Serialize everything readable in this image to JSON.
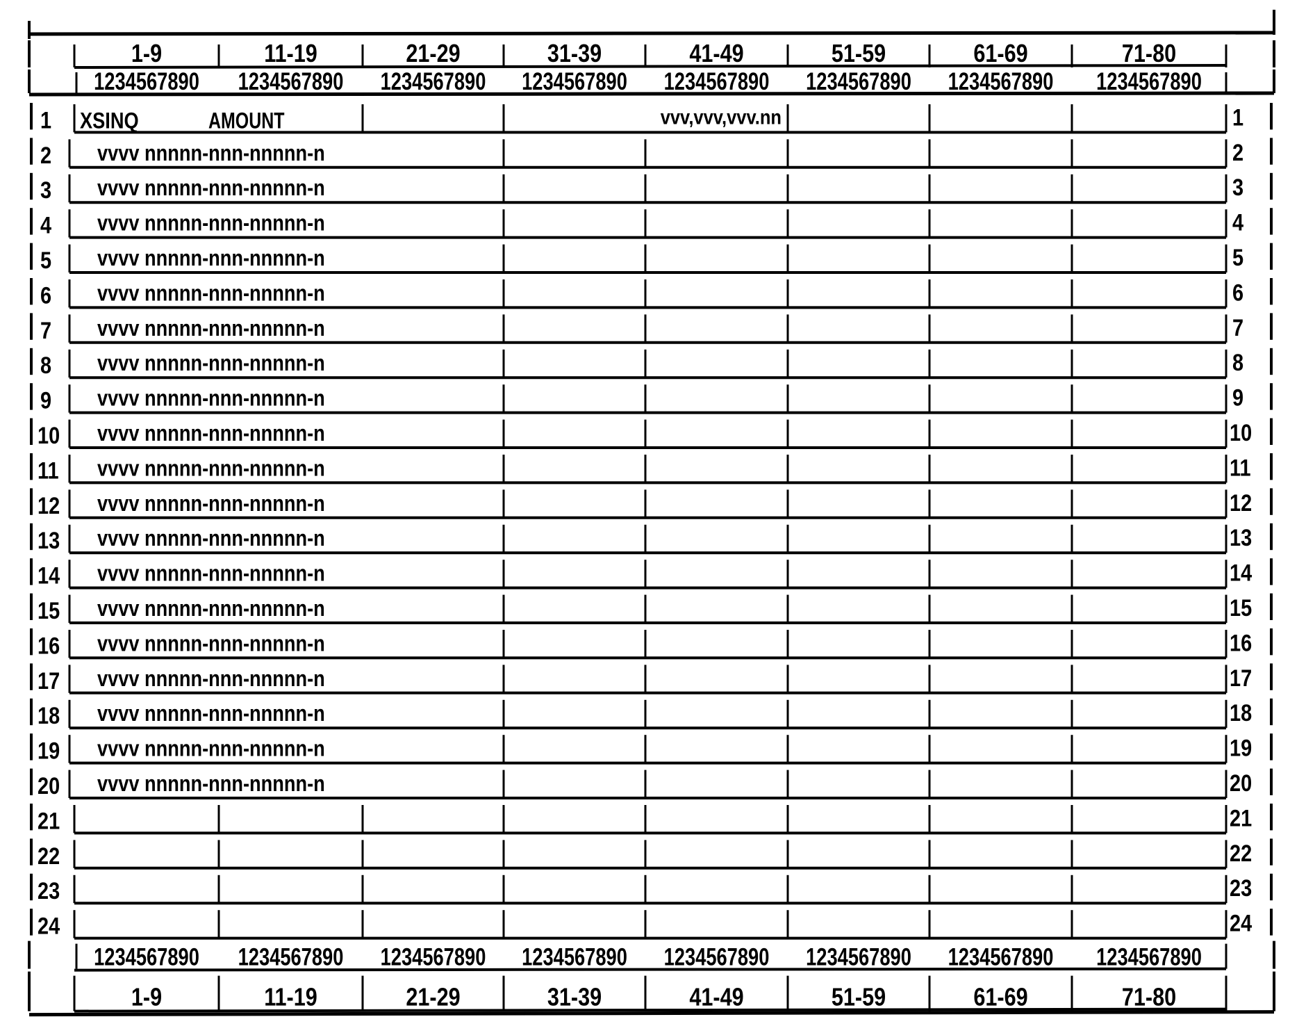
{
  "column_ranges": [
    "1-9",
    "11-19",
    "21-29",
    "31-39",
    "41-49",
    "51-59",
    "61-69",
    "71-80"
  ],
  "column_digits": "1234567890",
  "rows": [
    {
      "number": "1",
      "fields": [
        "XSINQ",
        "AMOUNT"
      ],
      "value": "vvv,vvv,vvv.nn"
    },
    {
      "number": "2",
      "text": "vvvv nnnnn-nnn-nnnnn-n"
    },
    {
      "number": "3",
      "text": "vvvv nnnnn-nnn-nnnnn-n"
    },
    {
      "number": "4",
      "text": "vvvv nnnnn-nnn-nnnnn-n"
    },
    {
      "number": "5",
      "text": "vvvv nnnnn-nnn-nnnnn-n"
    },
    {
      "number": "6",
      "text": "vvvv nnnnn-nnn-nnnnn-n"
    },
    {
      "number": "7",
      "text": "vvvv nnnnn-nnn-nnnnn-n"
    },
    {
      "number": "8",
      "text": "vvvv nnnnn-nnn-nnnnn-n"
    },
    {
      "number": "9",
      "text": "vvvv nnnnn-nnn-nnnnn-n"
    },
    {
      "number": "10",
      "text": "vvvv nnnnn-nnn-nnnnn-n"
    },
    {
      "number": "11",
      "text": "vvvv nnnnn-nnn-nnnnn-n"
    },
    {
      "number": "12",
      "text": "vvvv nnnnn-nnn-nnnnn-n"
    },
    {
      "number": "13",
      "text": "vvvv nnnnn-nnn-nnnnn-n"
    },
    {
      "number": "14",
      "text": "vvvv nnnnn-nnn-nnnnn-n"
    },
    {
      "number": "15",
      "text": "vvvv nnnnn-nnn-nnnnn-n"
    },
    {
      "number": "16",
      "text": "vvvv nnnnn-nnn-nnnnn-n"
    },
    {
      "number": "17",
      "text": "vvvv nnnnn-nnn-nnnnn-n"
    },
    {
      "number": "18",
      "text": "vvvv nnnnn-nnn-nnnnn-n"
    },
    {
      "number": "19",
      "text": "vvvv nnnnn-nnn-nnnnn-n"
    },
    {
      "number": "20",
      "text": "vvvv nnnnn-nnn-nnnnn-n"
    },
    {
      "number": "21"
    },
    {
      "number": "22"
    },
    {
      "number": "23"
    },
    {
      "number": "24"
    }
  ]
}
